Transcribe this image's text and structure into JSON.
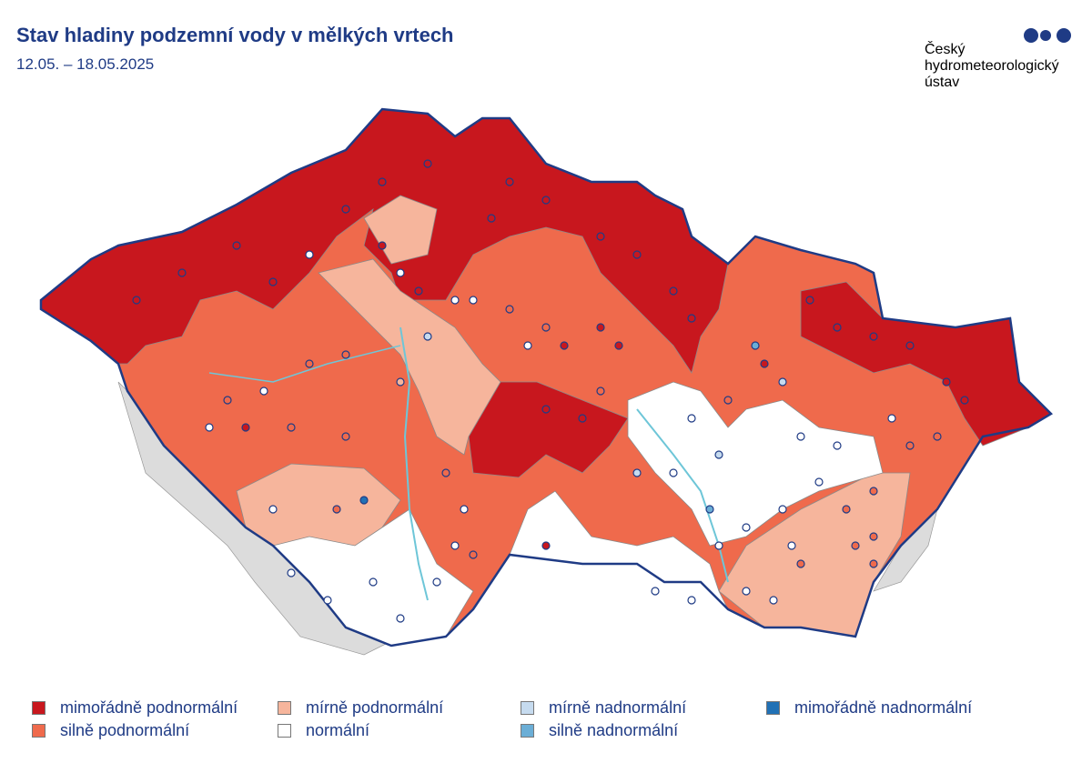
{
  "header": {
    "title": "Stav hladiny podzemní vody v mělkých vrtech",
    "date": "12.05. – 18.05.2025",
    "logo": [
      "Český",
      "hydrometeorologický",
      "ústav"
    ]
  },
  "legend": [
    {
      "label": "mimořádně podnormální",
      "color": "#c8171e"
    },
    {
      "label": "silně podnormální",
      "color": "#ef6a4c"
    },
    {
      "label": "mírně podnormální",
      "color": "#f6b59c"
    },
    {
      "label": "normální",
      "color": "#ffffff"
    },
    {
      "label": "mírně nadnormální",
      "color": "#c6dbef"
    },
    {
      "label": "silně nadnormální",
      "color": "#6baed6"
    },
    {
      "label": "mimořádně nadnormální",
      "color": "#2171b5"
    }
  ]
}
